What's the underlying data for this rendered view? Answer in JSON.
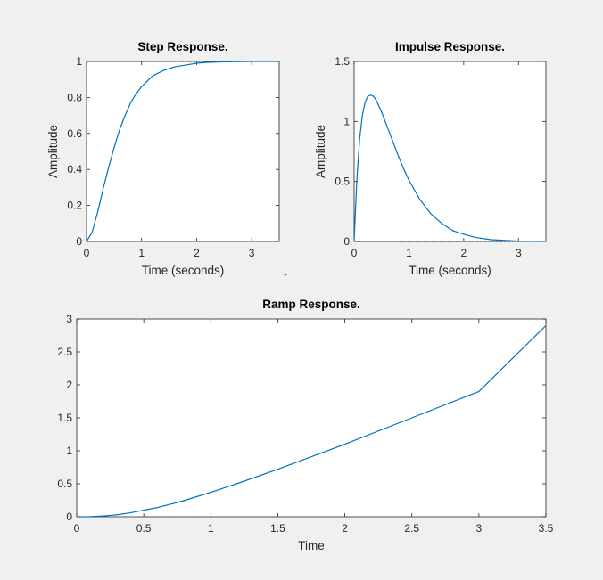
{
  "colors": {
    "figure_background": "#f0f0f0",
    "axes_background": "#ffffff",
    "axis_line": "#262626",
    "series_line": "#0072bd",
    "marker": "#e0201f"
  },
  "chart_data": [
    {
      "type": "line",
      "title": "Step Response.",
      "xlabel": "Time (seconds)",
      "ylabel": "Amplitude",
      "xlim": [
        0,
        3.5
      ],
      "ylim": [
        0,
        1
      ],
      "xticks": [
        "0",
        "1",
        "2",
        "3"
      ],
      "yticks": [
        "0",
        "0.2",
        "0.4",
        "0.6",
        "0.8",
        "1"
      ],
      "grid": false,
      "reference_line": {
        "y": 1,
        "style": "dotted"
      },
      "series": [
        {
          "x": [
            0,
            0.1,
            0.2,
            0.3,
            0.4,
            0.5,
            0.6,
            0.7,
            0.8,
            0.9,
            1.0,
            1.2,
            1.4,
            1.6,
            1.8,
            2.0,
            2.2,
            2.5,
            3.0,
            3.5
          ],
          "values": [
            0,
            0.05,
            0.16,
            0.29,
            0.41,
            0.52,
            0.62,
            0.7,
            0.77,
            0.82,
            0.86,
            0.92,
            0.95,
            0.97,
            0.98,
            0.99,
            0.995,
            0.998,
            1.0,
            1.0
          ]
        }
      ]
    },
    {
      "type": "line",
      "title": "Impulse Response.",
      "xlabel": "Time (seconds)",
      "ylabel": "Amplitude",
      "xlim": [
        0,
        3.5
      ],
      "ylim": [
        0,
        1.5
      ],
      "xticks": [
        "0",
        "1",
        "2",
        "3"
      ],
      "yticks": [
        "0",
        "0.5",
        "1",
        "1.5"
      ],
      "grid": false,
      "reference_line": {
        "y": 0,
        "style": "dotted"
      },
      "series": [
        {
          "x": [
            0,
            0.05,
            0.1,
            0.15,
            0.2,
            0.25,
            0.3,
            0.35,
            0.4,
            0.5,
            0.6,
            0.7,
            0.8,
            0.9,
            1.0,
            1.2,
            1.4,
            1.6,
            1.8,
            2.0,
            2.2,
            2.5,
            3.0,
            3.5
          ],
          "values": [
            0,
            0.52,
            0.85,
            1.05,
            1.16,
            1.21,
            1.22,
            1.21,
            1.18,
            1.08,
            0.96,
            0.84,
            0.72,
            0.61,
            0.51,
            0.35,
            0.23,
            0.15,
            0.09,
            0.06,
            0.035,
            0.015,
            0.003,
            0.0
          ]
        }
      ]
    },
    {
      "type": "line",
      "title": "Ramp Response.",
      "xlabel": "Time",
      "ylabel": "",
      "xlim": [
        0,
        3.5
      ],
      "ylim": [
        0,
        3
      ],
      "xticks": [
        "0",
        "0.5",
        "1",
        "1.5",
        "2",
        "2.5",
        "3",
        "3.5"
      ],
      "yticks": [
        "0",
        "0.5",
        "1",
        "1.5",
        "2",
        "2.5",
        "3"
      ],
      "grid": false,
      "series": [
        {
          "x": [
            0,
            0.1,
            0.2,
            0.3,
            0.4,
            0.5,
            0.6,
            0.7,
            0.8,
            1.0,
            1.2,
            1.5,
            2.0,
            2.5,
            3.0,
            3.5
          ],
          "values": [
            0,
            0.002,
            0.012,
            0.03,
            0.06,
            0.1,
            0.14,
            0.19,
            0.245,
            0.37,
            0.505,
            0.72,
            1.1,
            1.5,
            1.9,
            2.9
          ]
        }
      ]
    }
  ]
}
